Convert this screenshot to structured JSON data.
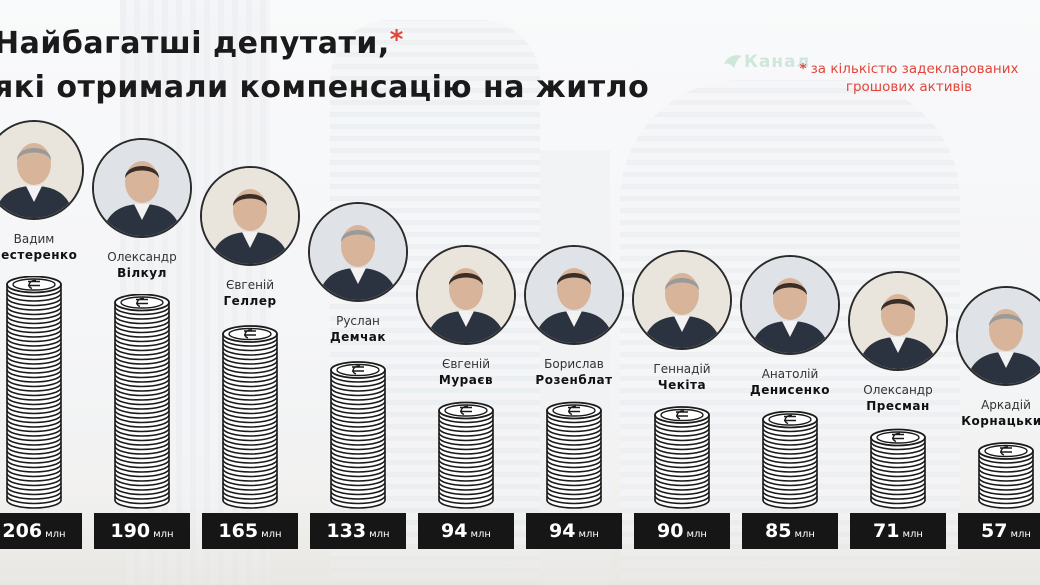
{
  "title_line1": "Найбагатші  депутати,",
  "title_star": "*",
  "title_line2": "які отримали компенсацію на житло",
  "logo_text": "Канал",
  "note_star": "*",
  "note": "за кількістю задекларованих грошових активів",
  "colors": {
    "accent": "#e0463a",
    "label_bg": "#161616",
    "coin": "#ffffff",
    "coin_stroke": "#1a1a1a"
  },
  "chart_data": {
    "type": "bar",
    "unit": "млн",
    "categories": [
      "Вадим Нестеренко",
      "Олександр Вілкул",
      "Євгеній Геллер",
      "Руслан Демчак",
      "Євгеній Мураєв",
      "Борислав Розенблат",
      "Геннадій Чекіта",
      "Анатолій Денисенко",
      "Олександр Пресман",
      "Аркадій Корнацький"
    ],
    "values": [
      206,
      190,
      165,
      133,
      94,
      94,
      90,
      85,
      71,
      57
    ],
    "deputies": [
      {
        "first": "Вадим",
        "last": "Нестеренко",
        "value": 206,
        "label": "206"
      },
      {
        "first": "Олександр",
        "last": "Вілкул",
        "value": 190,
        "label": "190"
      },
      {
        "first": "Євгеній",
        "last": "Геллер",
        "value": 165,
        "label": "165"
      },
      {
        "first": "Руслан",
        "last": "Демчак",
        "value": 133,
        "label": "133"
      },
      {
        "first": "Євгеній",
        "last": "Мураєв",
        "value": 94,
        "label": "94"
      },
      {
        "first": "Борислав",
        "last": "Розенблат",
        "value": 94,
        "label": "94"
      },
      {
        "first": "Геннадій",
        "last": "Чекіта",
        "value": 90,
        "label": "90"
      },
      {
        "first": "Анатолій",
        "last": "Денисенко",
        "value": 85,
        "label": "85"
      },
      {
        "first": "Олександр",
        "last": "Пресман",
        "value": 71,
        "label": "71"
      },
      {
        "first": "Аркадій",
        "last": "Корнацький",
        "value": 57,
        "label": "57"
      }
    ]
  }
}
